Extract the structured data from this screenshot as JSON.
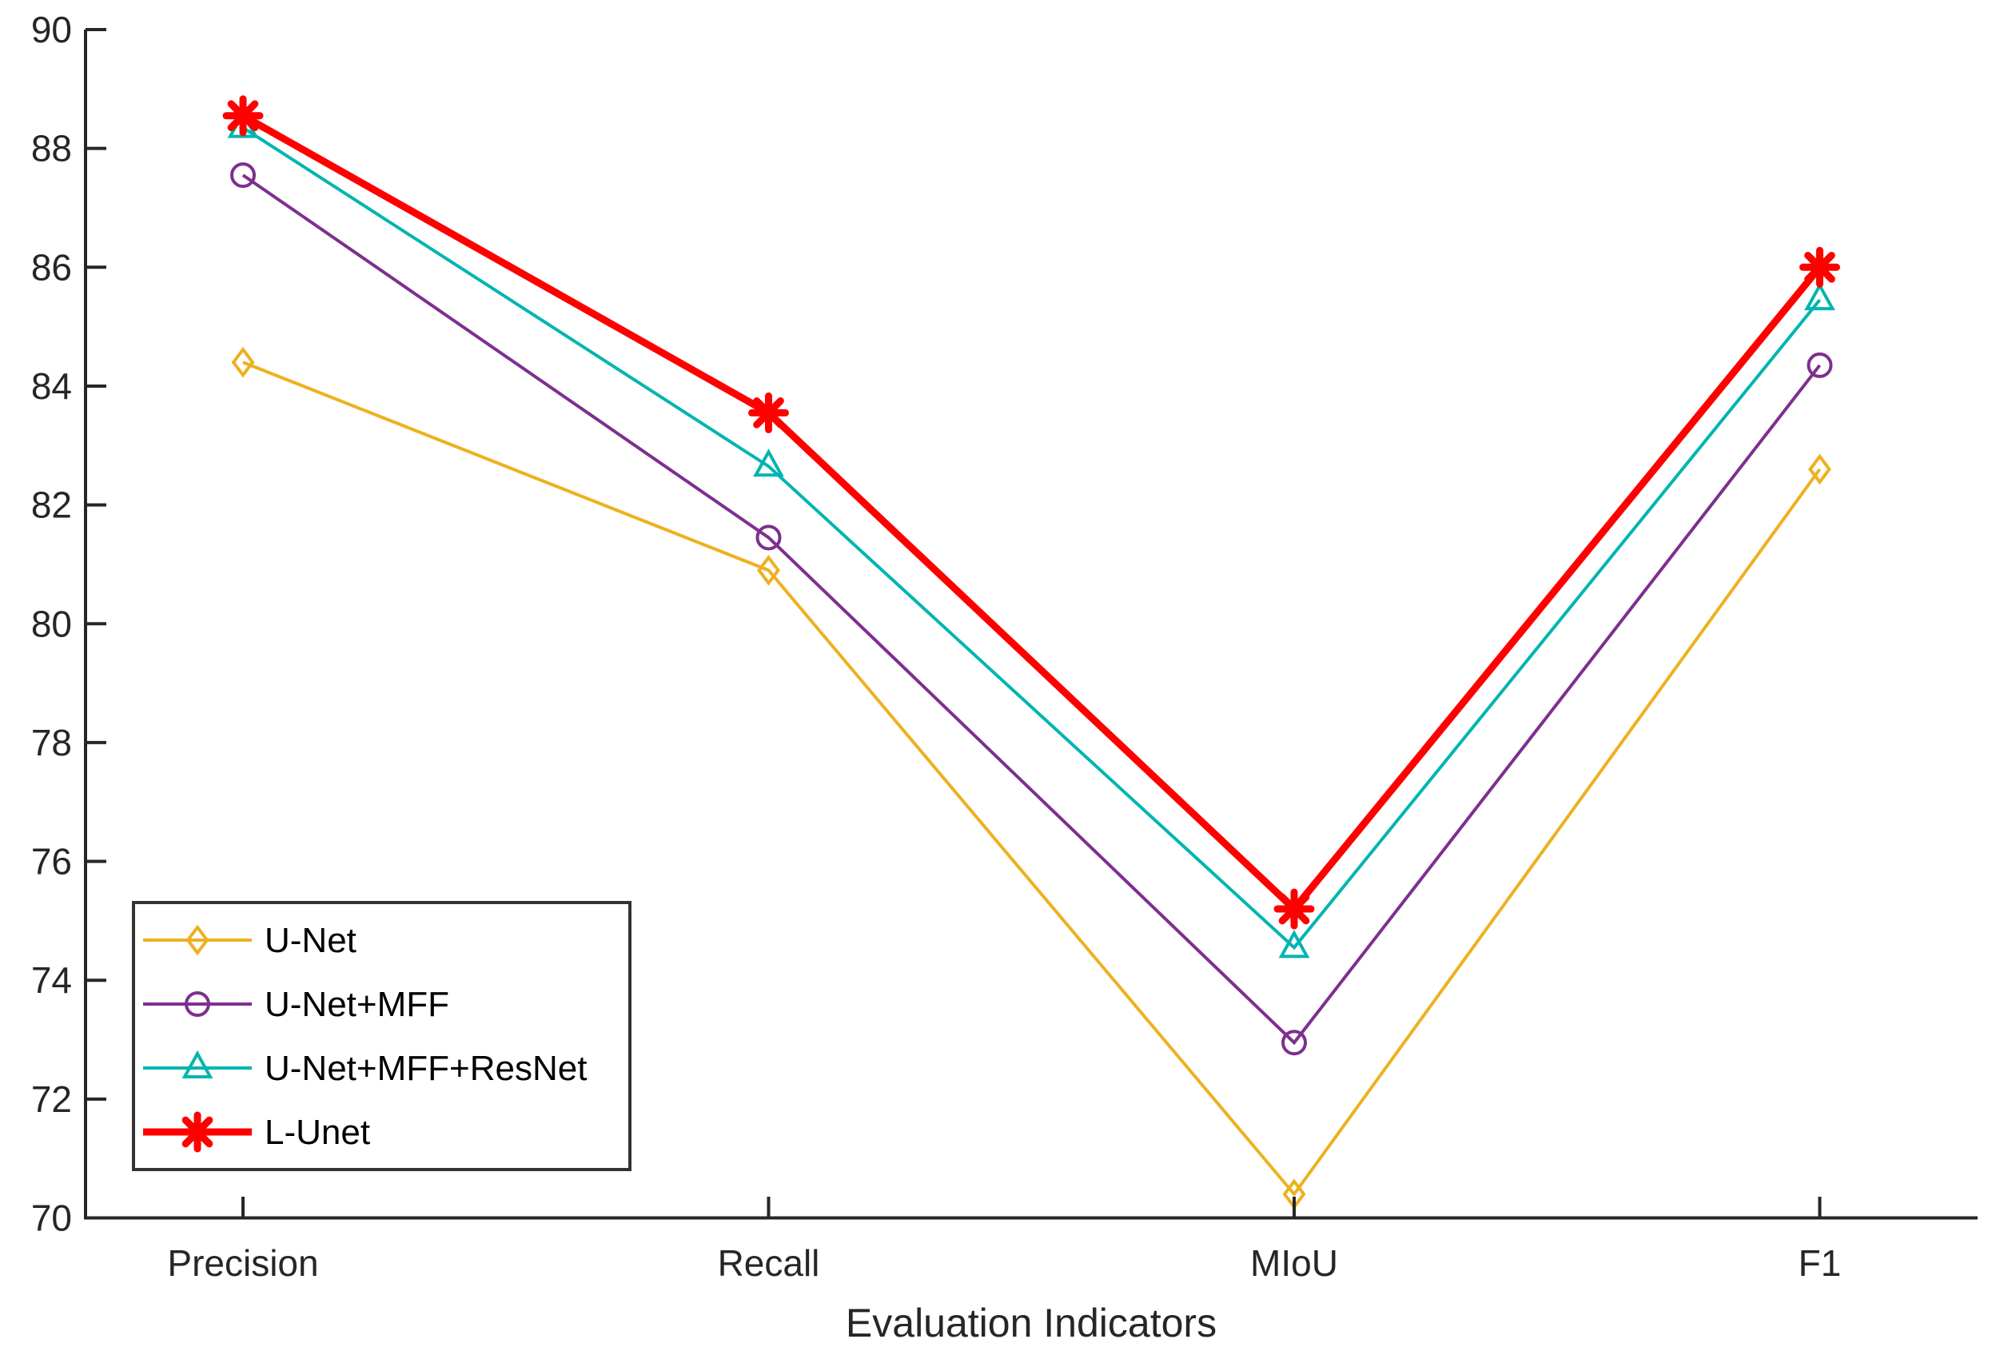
{
  "chart_data": {
    "type": "line",
    "title": "",
    "xlabel": "Evaluation Indicators",
    "ylabel": "",
    "categories": [
      "Precision",
      "Recall",
      "MIoU",
      "F1"
    ],
    "y_ticks": [
      70,
      72,
      74,
      76,
      78,
      80,
      82,
      84,
      86,
      88,
      90
    ],
    "ylim": [
      70,
      90
    ],
    "grid": false,
    "legend_position": "bottom-left-inside",
    "axis_color": "#262626",
    "series": [
      {
        "name": "U-Net",
        "marker": "diamond",
        "color": "#EDB120",
        "line_width": 4,
        "values": [
          84.4,
          80.9,
          70.4,
          82.6
        ]
      },
      {
        "name": "U-Net+MFF",
        "marker": "circle",
        "color": "#7E2F8E",
        "line_width": 4,
        "values": [
          87.55,
          81.45,
          72.95,
          84.35
        ]
      },
      {
        "name": "U-Net+MFF+ResNet",
        "marker": "triangle",
        "color": "#00B5B0",
        "line_width": 4,
        "values": [
          88.35,
          82.65,
          74.55,
          85.45
        ]
      },
      {
        "name": "L-Unet",
        "marker": "asterisk",
        "color": "#FF0000",
        "line_width": 9,
        "values": [
          88.55,
          83.55,
          75.2,
          86.0
        ]
      }
    ]
  }
}
